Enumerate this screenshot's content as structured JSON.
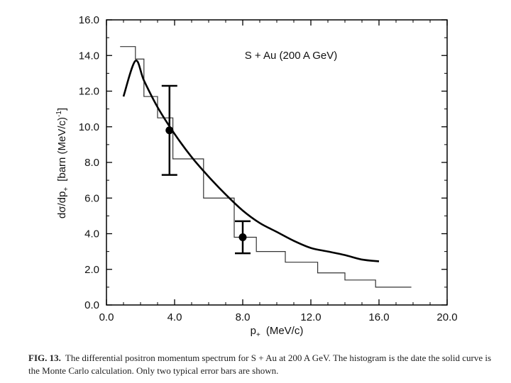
{
  "chart_data": {
    "type": "line",
    "xlabel": "p+ (MeV/c)",
    "xlabel_main": "p",
    "xlabel_sub": "+",
    "xlabel_units": "(MeV/c)",
    "ylabel_pre": "dσ/dp",
    "ylabel_sub": "+",
    "ylabel_units": "[barn (MeV/c)",
    "ylabel_exp": "-1",
    "ylabel_close": "]",
    "xlim": [
      0,
      20
    ],
    "ylim": [
      0,
      16
    ],
    "x_ticks": [
      0,
      4,
      8,
      12,
      16,
      20
    ],
    "x_tick_labels": [
      "0.0",
      "4.0",
      "8.0",
      "12.0",
      "16.0",
      "20.0"
    ],
    "y_ticks": [
      0,
      2,
      4,
      6,
      8,
      10,
      12,
      14,
      16
    ],
    "y_tick_labels": [
      "0.0",
      "2.0",
      "4.0",
      "6.0",
      "8.0",
      "10.0",
      "12.0",
      "14.0",
      "16.0"
    ],
    "annotation": "S + Au (200 A GeV)",
    "grid": false,
    "series": [
      {
        "name": "data histogram",
        "kind": "step",
        "bins": [
          {
            "x0": 0.8,
            "x1": 1.7,
            "y": 14.5
          },
          {
            "x0": 1.7,
            "x1": 2.2,
            "y": 13.8
          },
          {
            "x0": 2.2,
            "x1": 3.0,
            "y": 11.7
          },
          {
            "x0": 3.0,
            "x1": 3.9,
            "y": 10.5
          },
          {
            "x0": 3.9,
            "x1": 5.7,
            "y": 8.2
          },
          {
            "x0": 5.7,
            "x1": 7.5,
            "y": 6.0
          },
          {
            "x0": 7.5,
            "x1": 8.8,
            "y": 3.8
          },
          {
            "x0": 8.8,
            "x1": 10.5,
            "y": 3.0
          },
          {
            "x0": 10.5,
            "x1": 12.4,
            "y": 2.4
          },
          {
            "x0": 12.4,
            "x1": 14.0,
            "y": 1.8
          },
          {
            "x0": 14.0,
            "x1": 15.8,
            "y": 1.4
          },
          {
            "x0": 15.8,
            "x1": 17.9,
            "y": 1.0
          }
        ]
      },
      {
        "name": "Monte Carlo calculation",
        "kind": "curve",
        "x": [
          1.0,
          1.7,
          2.2,
          3.0,
          4.0,
          5.0,
          6.0,
          7.0,
          8.0,
          9.0,
          10.0,
          11.0,
          12.0,
          13.0,
          14.0,
          15.0,
          16.0
        ],
        "y": [
          11.7,
          13.7,
          12.6,
          11.1,
          9.6,
          8.3,
          7.2,
          6.2,
          5.3,
          4.6,
          4.1,
          3.6,
          3.2,
          3.0,
          2.8,
          2.55,
          2.45
        ]
      },
      {
        "name": "typical error bars",
        "kind": "points",
        "points": [
          {
            "x": 3.7,
            "y": 9.8,
            "ylow": 7.3,
            "yhigh": 12.3
          },
          {
            "x": 8.0,
            "y": 3.8,
            "ylow": 2.9,
            "yhigh": 4.7
          }
        ]
      }
    ]
  },
  "caption": {
    "label": "FIG. 13.",
    "text": "The differential positron momentum spectrum for S + Au at 200 A GeV. The histogram is the date the solid curve is the Monte Carlo calculation. Only two typical error bars are shown."
  }
}
